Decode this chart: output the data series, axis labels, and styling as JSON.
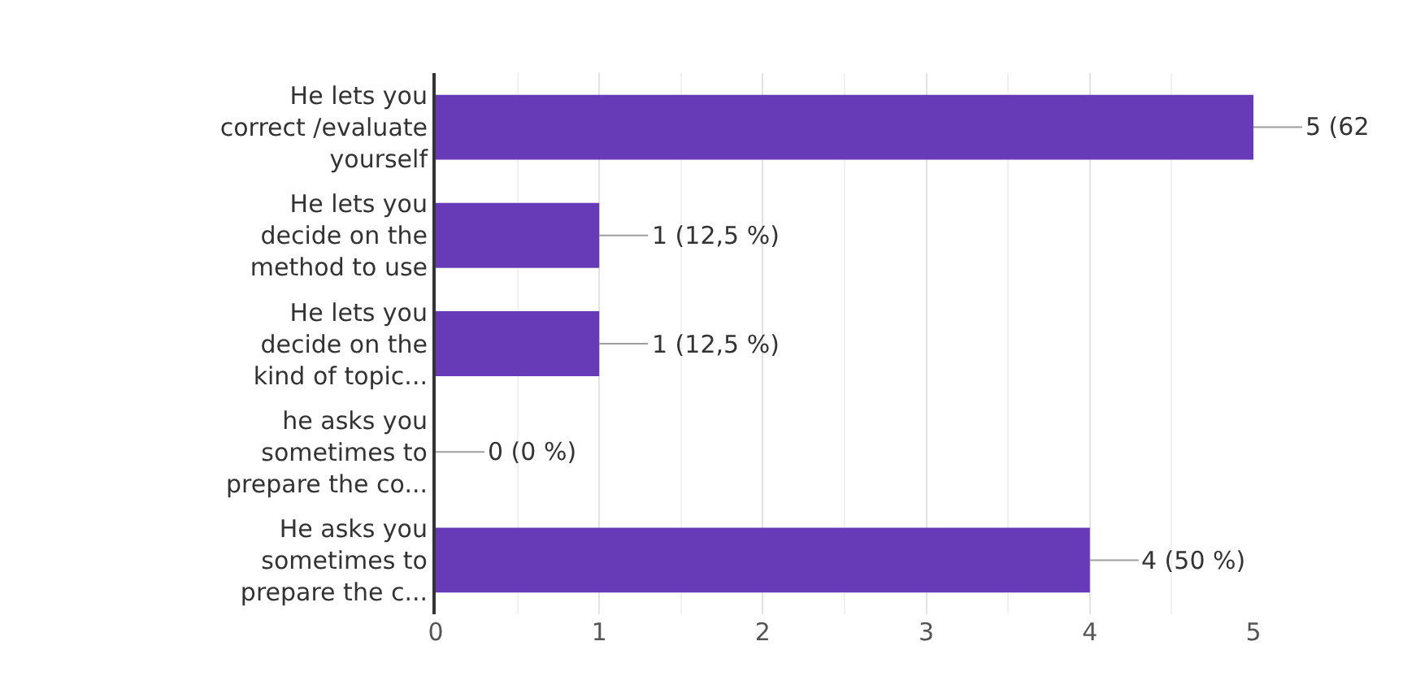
{
  "chart_data": {
    "type": "bar",
    "orientation": "horizontal",
    "categories": [
      "He lets you correct /evaluate yourself",
      "He lets you decide on the method to use",
      "He lets you decide on the kind of topic...",
      "he asks you sometimes to prepare the co...",
      "He asks you sometimes to prepare the c..."
    ],
    "values": [
      5,
      1,
      1,
      0,
      4
    ],
    "color": "#673ab7",
    "value_labels": [
      "5 (62",
      "1 (12,5 %)",
      "1 (12,5 %)",
      "0 (0 %)",
      "4 (50 %)"
    ],
    "xlim": [
      0,
      5
    ],
    "xticks": [
      0,
      {
        "value": 0.5,
        "label": null
      },
      1,
      {
        "value": 1.5,
        "label": null
      },
      2,
      {
        "value": 2.5,
        "label": null
      },
      3,
      {
        "value": 3.5,
        "label": null
      },
      4,
      {
        "value": 4.5,
        "label": null
      },
      5
    ],
    "grid": "x"
  }
}
